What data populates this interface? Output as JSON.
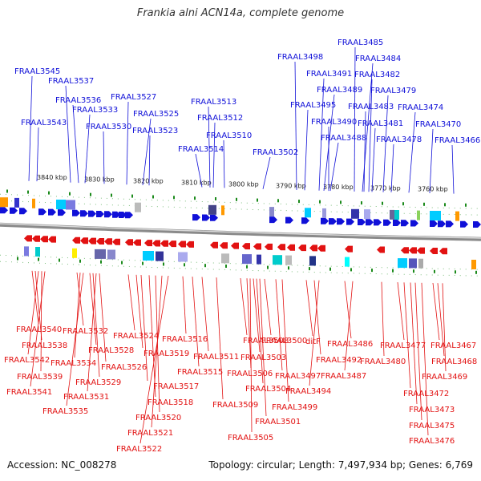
{
  "title": "Frankia alni ACN14a, complete genome",
  "footer": {
    "accession": "Accession: NC_008278",
    "topology": "Topology: circular; Length: 7,497,934 bp; Genes: 6,769"
  },
  "colors": {
    "forward": "#1010d8",
    "reverse": "#e21212",
    "backbone": "#8a8a8a",
    "tick": "#1b8a1b"
  },
  "ruler": [
    "3840 kbp",
    "3830 kbp",
    "3820 kbp",
    "3810 kbp",
    "3800 kbp",
    "3790 kbp",
    "3780 kbp",
    "3770 kbp",
    "3760 kbp"
  ],
  "top_labels": [
    "FRAAL3545",
    "FRAAL3537",
    "FRAAL3536",
    "FRAAL3533",
    "FRAAL3543",
    "FRAAL3530",
    "FRAAL3527",
    "FRAAL3525",
    "FRAAL3523",
    "FRAAL3513",
    "FRAAL3512",
    "FRAAL3514",
    "FRAAL3510",
    "FRAAL3502",
    "FRAAL3498",
    "FRAAL3495",
    "FRAAL3491",
    "FRAAL3489",
    "FRAAL3490",
    "FRAAL3488",
    "FRAAL3485",
    "FRAAL3484",
    "FRAAL3482",
    "FRAAL3483",
    "FRAAL3481",
    "FRAAL3479",
    "FRAAL3478",
    "FRAAL3474",
    "FRAAL3470",
    "FRAAL3466"
  ],
  "bottom_labels": [
    "FRAAL3540",
    "FRAAL3538",
    "FRAAL3542",
    "FRAAL3539",
    "FRAAL3541",
    "FRAAL3532",
    "FRAAL3534",
    "FRAAL3535",
    "FRAAL3528",
    "FRAAL3529",
    "FRAAL3531",
    "FRAAL3526",
    "FRAAL3524",
    "FRAAL3519",
    "FRAAL3517",
    "FRAAL3518",
    "FRAAL3520",
    "FRAAL3521",
    "FRAAL3522",
    "FRAAL3516",
    "FRAAL3515",
    "FRAAL3511",
    "FRAAL3509",
    "FRAAL3508",
    "FRAAL3506",
    "FRAAL3505",
    "FRAAL3503",
    "FRAAL3504",
    "FRAAL3501",
    "FRAAL3500",
    "FRAAL3497",
    "FRAAL3499",
    "ditF",
    "FRAAL3492",
    "FRAAL3494",
    "FRAAL3486",
    "FRAAL3487",
    "FRAAL3480",
    "FRAAL3477",
    "FRAAL3472",
    "FRAAL3473",
    "FRAAL3475",
    "FRAAL3476",
    "FRAAL3467",
    "FRAAL3468",
    "FRAAL3469"
  ]
}
